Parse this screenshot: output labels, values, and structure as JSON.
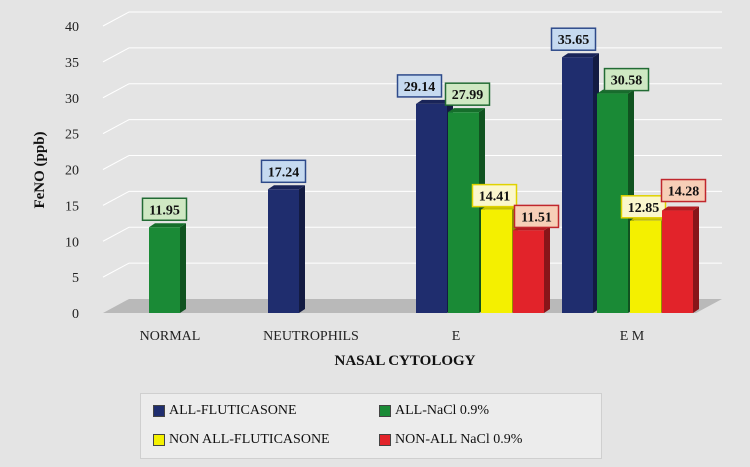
{
  "chart_data": {
    "type": "bar",
    "style": "3d-clustered-column",
    "title": "",
    "xlabel": "NASAL CYTOLOGY",
    "ylabel": "FeNO (ppb)",
    "ylim": [
      0,
      40
    ],
    "yticks": [
      0,
      5,
      10,
      15,
      20,
      25,
      30,
      35,
      40
    ],
    "grid": true,
    "legend_position": "bottom",
    "categories": [
      "NORMAL",
      "NEUTROPHILS",
      "E",
      "E M"
    ],
    "series": [
      {
        "name": "ALL-FLUTICASONE",
        "color": "#1f2d6e",
        "label_fill": "#c6daf0",
        "label_border": "#2e4a8a",
        "values": [
          null,
          17.24,
          29.14,
          35.65
        ],
        "labels": [
          "",
          "17.24",
          "29.14",
          "35.65"
        ]
      },
      {
        "name": "ALL-NaCl 0.9%",
        "color": "#1a8a36",
        "label_fill": "#cfe8c3",
        "label_border": "#226b34",
        "values": [
          11.95,
          null,
          27.99,
          30.58
        ],
        "labels": [
          "11.95",
          "",
          "27.99",
          "30.58"
        ]
      },
      {
        "name": "NON ALL-FLUTICASONE",
        "color": "#f4f000",
        "label_fill": "#fbf7cc",
        "label_border": "#e0d200",
        "values": [
          null,
          null,
          14.41,
          12.85
        ],
        "labels": [
          "",
          "",
          "14.41",
          "12.85"
        ]
      },
      {
        "name": "NON-ALL NaCl 0.9%",
        "color": "#e2232a",
        "label_fill": "#f7cfb7",
        "label_border": "#c0272d",
        "values": [
          null,
          null,
          11.51,
          14.28
        ],
        "labels": [
          "",
          "",
          "11.51",
          "14.28"
        ]
      }
    ]
  }
}
